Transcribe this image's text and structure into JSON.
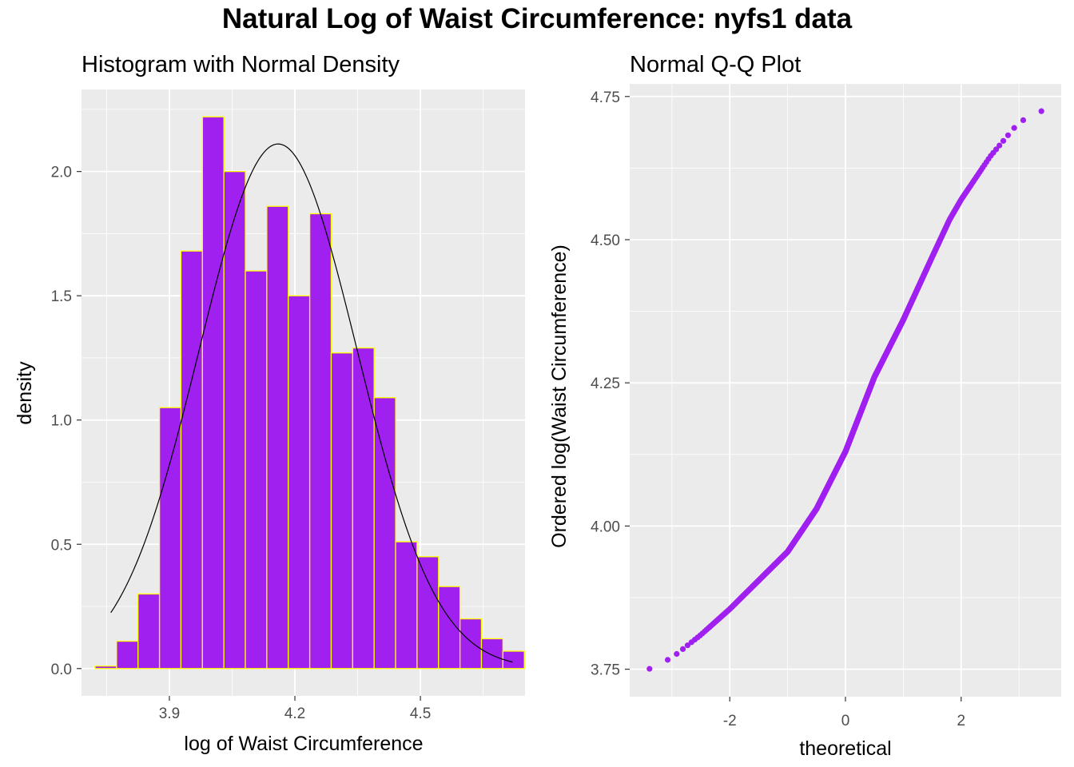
{
  "title": "Natural Log of Waist Circumference: nyfs1 data",
  "colors": {
    "panel_background": "#ebebeb",
    "grid": "#ffffff",
    "bar_fill": "#a020f0",
    "bar_outline": "#ffff00",
    "density_line": "#000000",
    "qq_point": "#a020f0"
  },
  "chart_data": [
    {
      "type": "bar",
      "title": "Histogram with Normal Density",
      "xlabel": "log of Waist Circumference",
      "ylabel": "density",
      "xlim": [
        3.69,
        4.75
      ],
      "ylim": [
        -0.11,
        2.33
      ],
      "xticks": [
        3.9,
        4.2,
        4.5
      ],
      "xtick_labels": [
        "3.9",
        "4.2",
        "4.5"
      ],
      "yticks": [
        0.0,
        0.5,
        1.0,
        1.5,
        2.0
      ],
      "ytick_labels": [
        "0.0",
        "0.5",
        "1.0",
        "1.5",
        "2.0"
      ],
      "grid": true,
      "bin_width": 0.0513,
      "bin_starts": [
        3.7225,
        3.7738,
        3.8251,
        3.8764,
        3.9277,
        3.979,
        4.0303,
        4.0816,
        4.1329,
        4.1842,
        4.2355,
        4.2868,
        4.3381,
        4.3894,
        4.4407,
        4.492,
        4.5433,
        4.5946,
        4.6459,
        4.6972
      ],
      "values": [
        0.01,
        0.11,
        0.3,
        1.05,
        1.68,
        2.22,
        2.0,
        1.6,
        1.86,
        1.5,
        1.83,
        1.27,
        1.29,
        1.09,
        0.51,
        0.45,
        0.33,
        0.2,
        0.12,
        0.07
      ],
      "normal_density": {
        "mean": 4.16,
        "sd": 0.189,
        "x_from": 3.76,
        "x_to": 4.72
      }
    },
    {
      "type": "scatter",
      "title": "Normal Q-Q Plot",
      "xlabel": "theoretical",
      "ylabel": "Ordered log(Waist Circumference)",
      "xlim": [
        -3.73,
        3.73
      ],
      "ylim": [
        3.702,
        4.772
      ],
      "xticks": [
        -2,
        0,
        2
      ],
      "xtick_labels": [
        "-2",
        "0",
        "2"
      ],
      "yticks": [
        3.75,
        4.0,
        4.25,
        4.5,
        4.75
      ],
      "ytick_labels": [
        "3.75",
        "4.00",
        "4.25",
        "4.50",
        "4.75"
      ],
      "grid": true,
      "curve": {
        "x": [
          -3.4,
          -3.0,
          -2.5,
          -2.0,
          -1.5,
          -1.0,
          -0.5,
          0.0,
          0.5,
          1.0,
          1.5,
          1.8,
          2.0,
          2.5,
          3.0,
          3.4
        ],
        "y": [
          3.75,
          3.77,
          3.81,
          3.855,
          3.905,
          3.955,
          4.03,
          4.13,
          4.26,
          4.36,
          4.47,
          4.535,
          4.57,
          4.645,
          4.705,
          4.725
        ]
      },
      "point_count": 1416
    }
  ]
}
